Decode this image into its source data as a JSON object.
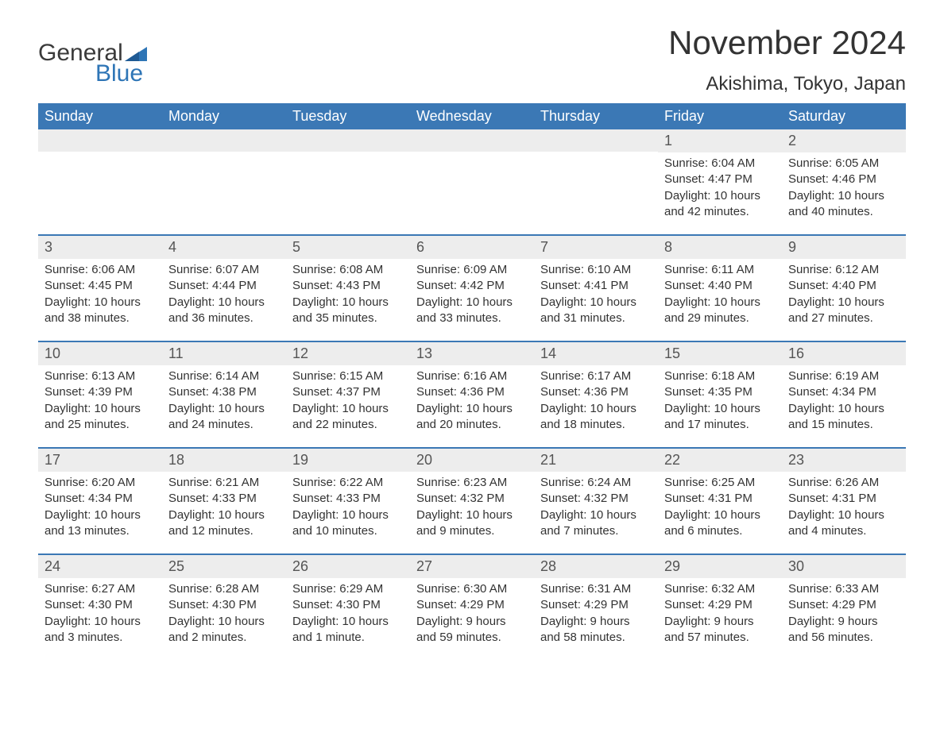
{
  "logo": {
    "text1": "General",
    "text2": "Blue",
    "flag_color": "#2e75b6"
  },
  "title": "November 2024",
  "location": "Akishima, Tokyo, Japan",
  "colors": {
    "header_bg": "#3b78b5",
    "header_text": "#ffffff",
    "daynum_bg": "#ededed",
    "text": "#333333",
    "accent": "#2e75b6"
  },
  "day_names": [
    "Sunday",
    "Monday",
    "Tuesday",
    "Wednesday",
    "Thursday",
    "Friday",
    "Saturday"
  ],
  "weeks": [
    [
      {
        "empty": true
      },
      {
        "empty": true
      },
      {
        "empty": true
      },
      {
        "empty": true
      },
      {
        "empty": true
      },
      {
        "day": "1",
        "sunrise": "Sunrise: 6:04 AM",
        "sunset": "Sunset: 4:47 PM",
        "daylight": "Daylight: 10 hours and 42 minutes."
      },
      {
        "day": "2",
        "sunrise": "Sunrise: 6:05 AM",
        "sunset": "Sunset: 4:46 PM",
        "daylight": "Daylight: 10 hours and 40 minutes."
      }
    ],
    [
      {
        "day": "3",
        "sunrise": "Sunrise: 6:06 AM",
        "sunset": "Sunset: 4:45 PM",
        "daylight": "Daylight: 10 hours and 38 minutes."
      },
      {
        "day": "4",
        "sunrise": "Sunrise: 6:07 AM",
        "sunset": "Sunset: 4:44 PM",
        "daylight": "Daylight: 10 hours and 36 minutes."
      },
      {
        "day": "5",
        "sunrise": "Sunrise: 6:08 AM",
        "sunset": "Sunset: 4:43 PM",
        "daylight": "Daylight: 10 hours and 35 minutes."
      },
      {
        "day": "6",
        "sunrise": "Sunrise: 6:09 AM",
        "sunset": "Sunset: 4:42 PM",
        "daylight": "Daylight: 10 hours and 33 minutes."
      },
      {
        "day": "7",
        "sunrise": "Sunrise: 6:10 AM",
        "sunset": "Sunset: 4:41 PM",
        "daylight": "Daylight: 10 hours and 31 minutes."
      },
      {
        "day": "8",
        "sunrise": "Sunrise: 6:11 AM",
        "sunset": "Sunset: 4:40 PM",
        "daylight": "Daylight: 10 hours and 29 minutes."
      },
      {
        "day": "9",
        "sunrise": "Sunrise: 6:12 AM",
        "sunset": "Sunset: 4:40 PM",
        "daylight": "Daylight: 10 hours and 27 minutes."
      }
    ],
    [
      {
        "day": "10",
        "sunrise": "Sunrise: 6:13 AM",
        "sunset": "Sunset: 4:39 PM",
        "daylight": "Daylight: 10 hours and 25 minutes."
      },
      {
        "day": "11",
        "sunrise": "Sunrise: 6:14 AM",
        "sunset": "Sunset: 4:38 PM",
        "daylight": "Daylight: 10 hours and 24 minutes."
      },
      {
        "day": "12",
        "sunrise": "Sunrise: 6:15 AM",
        "sunset": "Sunset: 4:37 PM",
        "daylight": "Daylight: 10 hours and 22 minutes."
      },
      {
        "day": "13",
        "sunrise": "Sunrise: 6:16 AM",
        "sunset": "Sunset: 4:36 PM",
        "daylight": "Daylight: 10 hours and 20 minutes."
      },
      {
        "day": "14",
        "sunrise": "Sunrise: 6:17 AM",
        "sunset": "Sunset: 4:36 PM",
        "daylight": "Daylight: 10 hours and 18 minutes."
      },
      {
        "day": "15",
        "sunrise": "Sunrise: 6:18 AM",
        "sunset": "Sunset: 4:35 PM",
        "daylight": "Daylight: 10 hours and 17 minutes."
      },
      {
        "day": "16",
        "sunrise": "Sunrise: 6:19 AM",
        "sunset": "Sunset: 4:34 PM",
        "daylight": "Daylight: 10 hours and 15 minutes."
      }
    ],
    [
      {
        "day": "17",
        "sunrise": "Sunrise: 6:20 AM",
        "sunset": "Sunset: 4:34 PM",
        "daylight": "Daylight: 10 hours and 13 minutes."
      },
      {
        "day": "18",
        "sunrise": "Sunrise: 6:21 AM",
        "sunset": "Sunset: 4:33 PM",
        "daylight": "Daylight: 10 hours and 12 minutes."
      },
      {
        "day": "19",
        "sunrise": "Sunrise: 6:22 AM",
        "sunset": "Sunset: 4:33 PM",
        "daylight": "Daylight: 10 hours and 10 minutes."
      },
      {
        "day": "20",
        "sunrise": "Sunrise: 6:23 AM",
        "sunset": "Sunset: 4:32 PM",
        "daylight": "Daylight: 10 hours and 9 minutes."
      },
      {
        "day": "21",
        "sunrise": "Sunrise: 6:24 AM",
        "sunset": "Sunset: 4:32 PM",
        "daylight": "Daylight: 10 hours and 7 minutes."
      },
      {
        "day": "22",
        "sunrise": "Sunrise: 6:25 AM",
        "sunset": "Sunset: 4:31 PM",
        "daylight": "Daylight: 10 hours and 6 minutes."
      },
      {
        "day": "23",
        "sunrise": "Sunrise: 6:26 AM",
        "sunset": "Sunset: 4:31 PM",
        "daylight": "Daylight: 10 hours and 4 minutes."
      }
    ],
    [
      {
        "day": "24",
        "sunrise": "Sunrise: 6:27 AM",
        "sunset": "Sunset: 4:30 PM",
        "daylight": "Daylight: 10 hours and 3 minutes."
      },
      {
        "day": "25",
        "sunrise": "Sunrise: 6:28 AM",
        "sunset": "Sunset: 4:30 PM",
        "daylight": "Daylight: 10 hours and 2 minutes."
      },
      {
        "day": "26",
        "sunrise": "Sunrise: 6:29 AM",
        "sunset": "Sunset: 4:30 PM",
        "daylight": "Daylight: 10 hours and 1 minute."
      },
      {
        "day": "27",
        "sunrise": "Sunrise: 6:30 AM",
        "sunset": "Sunset: 4:29 PM",
        "daylight": "Daylight: 9 hours and 59 minutes."
      },
      {
        "day": "28",
        "sunrise": "Sunrise: 6:31 AM",
        "sunset": "Sunset: 4:29 PM",
        "daylight": "Daylight: 9 hours and 58 minutes."
      },
      {
        "day": "29",
        "sunrise": "Sunrise: 6:32 AM",
        "sunset": "Sunset: 4:29 PM",
        "daylight": "Daylight: 9 hours and 57 minutes."
      },
      {
        "day": "30",
        "sunrise": "Sunrise: 6:33 AM",
        "sunset": "Sunset: 4:29 PM",
        "daylight": "Daylight: 9 hours and 56 minutes."
      }
    ]
  ]
}
